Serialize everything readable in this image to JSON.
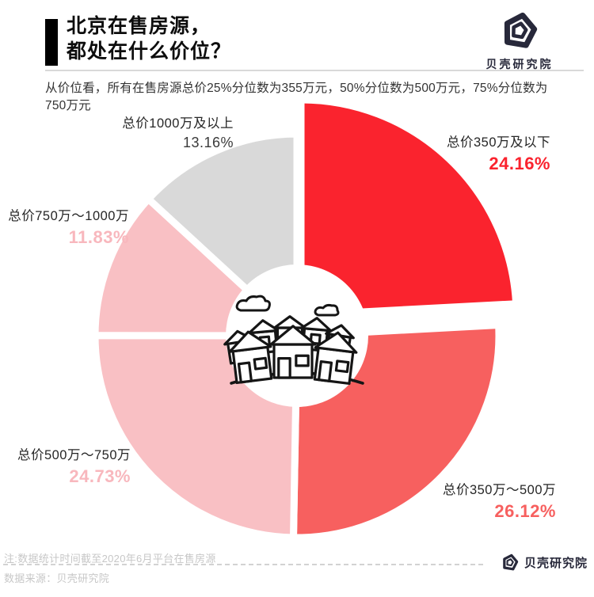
{
  "header": {
    "title_line1": "北京在售房源，",
    "title_line2": "都处在什么价位？",
    "subtitle": "从价位看，所有在售房源总价25%分位数为355万元，50%分位数为500万元，75%分位数为750万元",
    "brand": "贝壳研究院"
  },
  "chart_data": {
    "type": "pie",
    "title": "北京在售房源，都处在什么价位？",
    "unit": "%",
    "direction": "clockwise",
    "start_angle_deg": 0,
    "donut": true,
    "center_illustration": "houses-and-clouds-line-art",
    "slices": [
      {
        "label": "总价350万及以下",
        "value": 24.16,
        "display": "24.16%",
        "color": "#fa232e",
        "pct_color": "#fa232e",
        "emphasis": true
      },
      {
        "label": "总价350万～500万",
        "value": 26.12,
        "display": "26.12%",
        "color": "#f7605f",
        "pct_color": "#f7605f",
        "emphasis": false
      },
      {
        "label": "总价500万～750万",
        "value": 24.73,
        "display": "24.73%",
        "color": "#f9c0c4",
        "pct_color": "#f8b7bd",
        "emphasis": false
      },
      {
        "label": "总价750万～1000万",
        "value": 11.83,
        "display": "11.83%",
        "color": "#f9c0c4",
        "pct_color": "#f8b7bd",
        "emphasis": false
      },
      {
        "label": "总价1000万及以上",
        "value": 13.16,
        "display": "13.16%",
        "color": "#d9d9d9",
        "pct_color": "#3a3a3a",
        "emphasis": false
      }
    ]
  },
  "footer": {
    "note": "注:数据统计时间截至2020年6月平台在售房源",
    "source": "数据来源：贝壳研究院",
    "brand": "贝壳研究院"
  }
}
